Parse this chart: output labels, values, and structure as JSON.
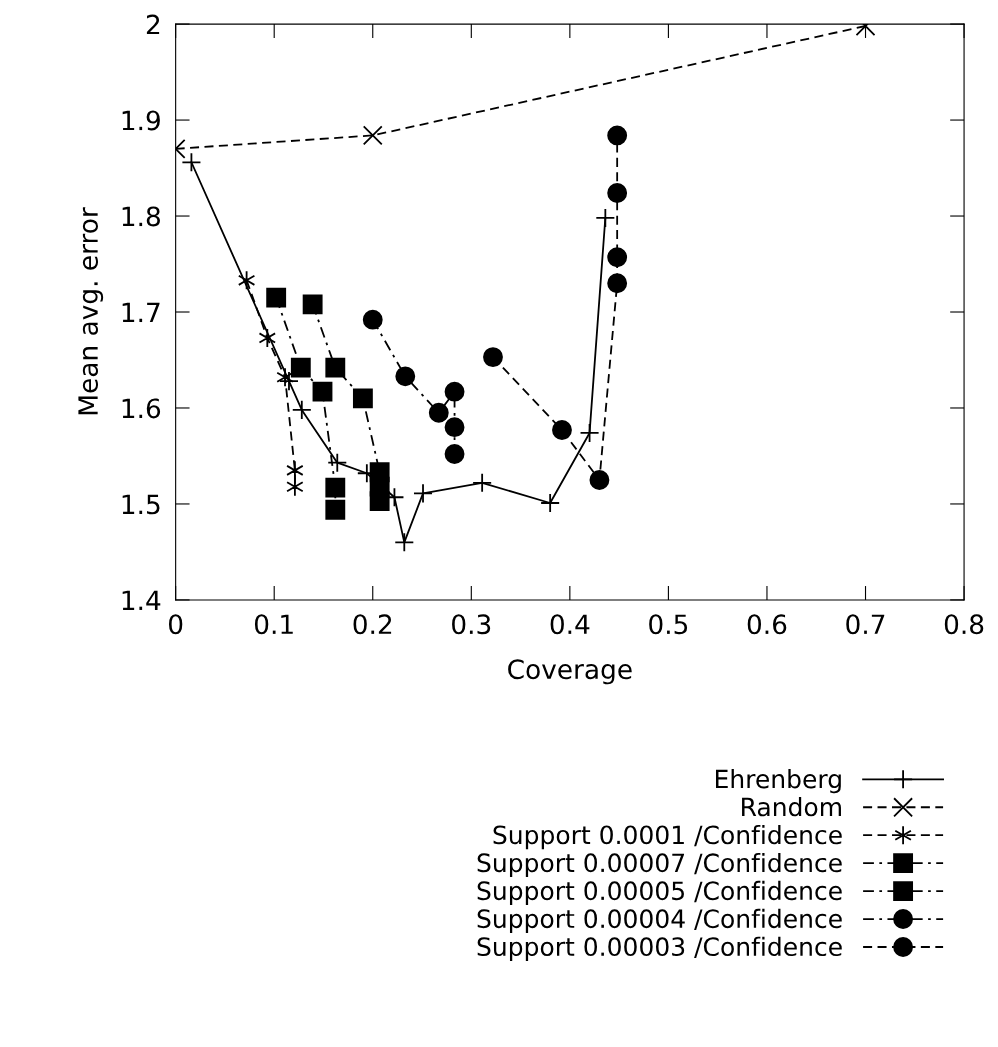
{
  "chart_data": {
    "type": "line",
    "xlabel": "Coverage",
    "ylabel": "Mean avg. error",
    "xlim": [
      0,
      0.8
    ],
    "ylim": [
      1.4,
      2
    ],
    "xticks": [
      0,
      0.1,
      0.2,
      0.3,
      0.4,
      0.5,
      0.6,
      0.7,
      0.8
    ],
    "yticks": [
      1.4,
      1.5,
      1.6,
      1.7,
      1.8,
      1.9,
      2
    ],
    "grid": false,
    "legend": "bottom right",
    "series": [
      {
        "name": "Ehrenberg",
        "color": "#000000",
        "marker": "plus",
        "line_style": "solid",
        "x": [
          0.016,
          0.115,
          0.128,
          0.164,
          0.194,
          0.222,
          0.232,
          0.251,
          0.311,
          0.38,
          0.42,
          0.436
        ],
        "values": [
          1.856,
          1.628,
          1.598,
          1.543,
          1.532,
          1.507,
          1.46,
          1.511,
          1.522,
          1.501,
          1.574,
          1.798
        ]
      },
      {
        "name": "Random",
        "color": "#000000",
        "marker": "x",
        "line_style": "dashed",
        "x": [
          0,
          0.2,
          0.7
        ],
        "values": [
          1.87,
          1.884,
          1.998
        ]
      },
      {
        "name": "Support 0.0001 /Confidence",
        "color": "#000000",
        "marker": "cross",
        "line_style": "dashed",
        "x": [
          0.072,
          0.093,
          0.111,
          0.121,
          0.121
        ],
        "values": [
          1.733,
          1.673,
          1.632,
          1.535,
          1.518
        ]
      },
      {
        "name": "Support 0.00007 /Confidence",
        "color": "#000000",
        "marker": "square",
        "line_style": "dashdot",
        "x": [
          0.102,
          0.127,
          0.149,
          0.162,
          0.162
        ],
        "values": [
          1.715,
          1.642,
          1.617,
          1.517,
          1.494
        ]
      },
      {
        "name": "Support 0.00005 /Confidence",
        "color": "#000000",
        "marker": "square",
        "line_style": "dashdot",
        "x": [
          0.139,
          0.162,
          0.19,
          0.207,
          0.207,
          0.207
        ],
        "values": [
          1.708,
          1.642,
          1.61,
          1.533,
          1.518,
          1.503
        ]
      },
      {
        "name": "Support 0.00004 /Confidence",
        "color": "#000000",
        "marker": "circle",
        "line_style": "dashdot",
        "x": [
          0.2,
          0.233,
          0.267,
          0.283,
          0.283,
          0.283
        ],
        "values": [
          1.692,
          1.633,
          1.595,
          1.617,
          1.58,
          1.552
        ]
      },
      {
        "name": "Support 0.00003 /Confidence",
        "color": "#000000",
        "marker": "circle",
        "line_style": "dashed",
        "x": [
          0.322,
          0.392,
          0.43,
          0.448,
          0.448,
          0.448,
          0.448
        ],
        "values": [
          1.653,
          1.577,
          1.525,
          1.73,
          1.757,
          1.824,
          1.884
        ]
      }
    ]
  }
}
